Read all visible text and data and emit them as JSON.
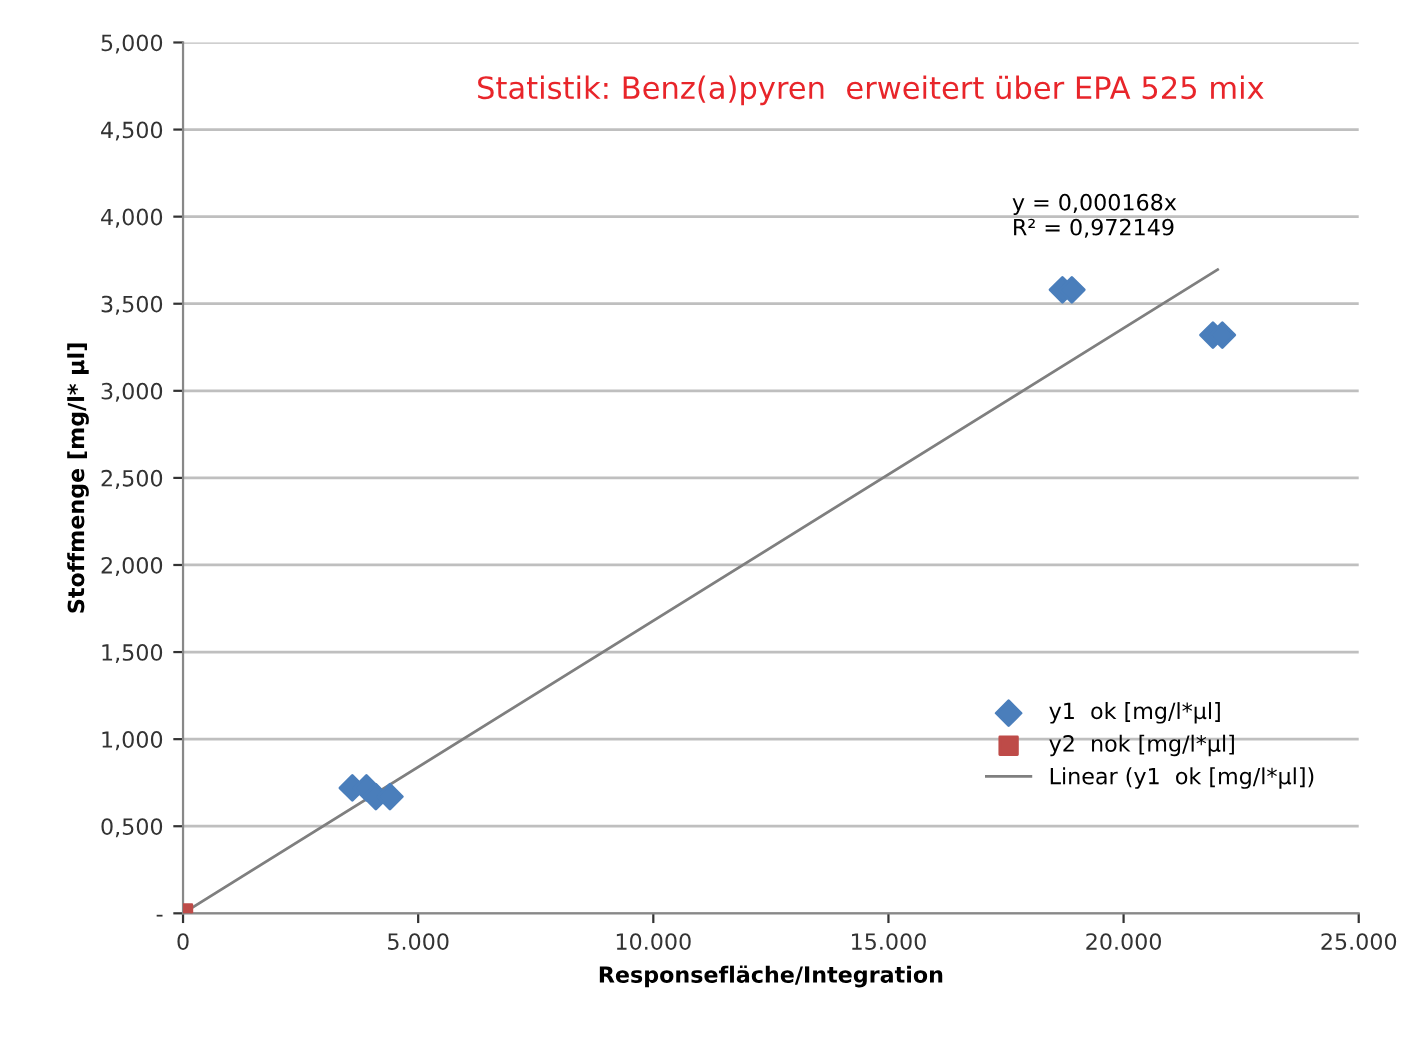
{
  "chart_data": {
    "type": "scatter",
    "title": "Statistik: Benz(a)pyren  erweitert über EPA 525 mix",
    "xlabel": "Responsefläche/Integration",
    "ylabel": "Stoffmenge [mg/l* µl]",
    "annotations": [
      "y = 0,000168x\nR² = 0,972149"
    ],
    "series": [
      {
        "name": "y1  ok [mg/l*µl]",
        "color": "#4a7ebb",
        "marker": "diamond",
        "x": [
          3600,
          3900,
          4100,
          4400,
          18700,
          18900,
          21900,
          22100
        ],
        "values": [
          0.72,
          0.72,
          0.67,
          0.67,
          3.58,
          3.58,
          3.32,
          3.32
        ]
      },
      {
        "name": "y2  nok [mg/l*µl]",
        "color": "#be4b48",
        "marker": "square",
        "x": [
          0
        ],
        "values": [
          0
        ]
      },
      {
        "name": "Linear (y1  ok [mg/l*µl])",
        "type": "line",
        "color": "#7f7f7f",
        "marker": "none",
        "x": [
          0,
          22000
        ],
        "values": [
          0,
          3.696
        ]
      }
    ],
    "xlim": [
      0,
      25000
    ],
    "xticks": [
      {
        "value": 0,
        "label": "0"
      },
      {
        "value": 5000,
        "label": "5.000"
      },
      {
        "value": 10000,
        "label": "10.000"
      },
      {
        "value": 15000,
        "label": "15.000"
      },
      {
        "value": 20000,
        "label": "20.000"
      },
      {
        "value": 25000,
        "label": "25.000"
      }
    ],
    "ylim": [
      0,
      5
    ],
    "yticks": [
      {
        "value": 0,
        "label": "-"
      },
      {
        "value": 0.5,
        "label": "0,500"
      },
      {
        "value": 1,
        "label": "1,000"
      },
      {
        "value": 1.5,
        "label": "1,500"
      },
      {
        "value": 2,
        "label": "2,000"
      },
      {
        "value": 2.5,
        "label": "2,500"
      },
      {
        "value": 3,
        "label": "3,000"
      },
      {
        "value": 3.5,
        "label": "3,500"
      },
      {
        "value": 4,
        "label": "4,000"
      },
      {
        "value": 4.5,
        "label": "4,500"
      },
      {
        "value": 5,
        "label": "5,000"
      }
    ],
    "grid": "y",
    "legend": "bottom right"
  }
}
